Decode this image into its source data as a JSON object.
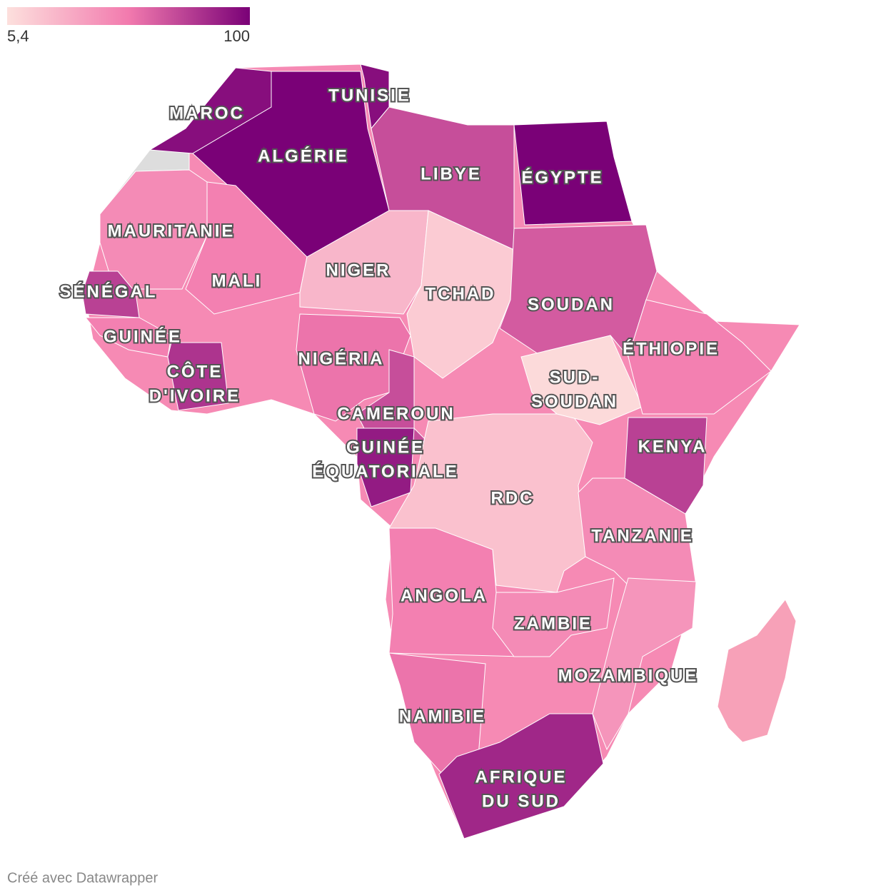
{
  "legend": {
    "ticks": [
      {
        "value": 5.4,
        "label": "5,4"
      },
      100
    ],
    "colors": [
      "#fde0dd",
      "#f27aae",
      "#7a0177"
    ]
  },
  "countries": [
    {
      "name": [
        "MAROC"
      ],
      "value": 95
    },
    {
      "name": [
        "ALGÉRIE"
      ],
      "value": 100
    },
    {
      "name": [
        "TUNISIE"
      ],
      "value": 95
    },
    {
      "name": [
        "LIBYE"
      ],
      "value": 70
    },
    {
      "name": [
        "ÉGYPTE"
      ],
      "value": 100
    },
    {
      "name": [
        "MAURITANIE"
      ],
      "value": 45
    },
    {
      "name": [
        "MALI"
      ],
      "value": 50
    },
    {
      "name": [
        "NIGER"
      ],
      "value": 25
    },
    {
      "name": [
        "TCHAD"
      ],
      "value": 15
    },
    {
      "name": [
        "SOUDAN"
      ],
      "value": 65
    },
    {
      "name": [
        "SÉNÉGAL"
      ],
      "value": 75
    },
    {
      "name": [
        "GUINÉE"
      ],
      "value": 50
    },
    {
      "name": [
        "CÔTE",
        "D'IVOIRE"
      ],
      "value": 80
    },
    {
      "name": [
        "NIGÉRIA"
      ],
      "value": 55
    },
    {
      "name": [
        "CAMEROUN"
      ],
      "value": 70
    },
    {
      "name": [
        "GUINÉE",
        "ÉQUATORIALE"
      ],
      "value": 90
    },
    {
      "name": [
        "RDC"
      ],
      "value": 20
    },
    {
      "name": [
        "SUD-",
        "SOUDAN"
      ],
      "value": 8
    },
    {
      "name": [
        "ÉTHIOPIE"
      ],
      "value": 50
    },
    {
      "name": [
        "KENYA"
      ],
      "value": 75
    },
    {
      "name": [
        "TANZANIE"
      ],
      "value": 45
    },
    {
      "name": [
        "ANGOLA"
      ],
      "value": 50
    },
    {
      "name": [
        "ZAMBIE"
      ],
      "value": 45
    },
    {
      "name": [
        "MOZAMBIQUE"
      ],
      "value": 40
    },
    {
      "name": [
        "NAMIBIE"
      ],
      "value": 55
    },
    {
      "name": [
        "AFRIQUE",
        "DU SUD"
      ],
      "value": 85
    }
  ],
  "credit": "Créé avec Datawrapper"
}
